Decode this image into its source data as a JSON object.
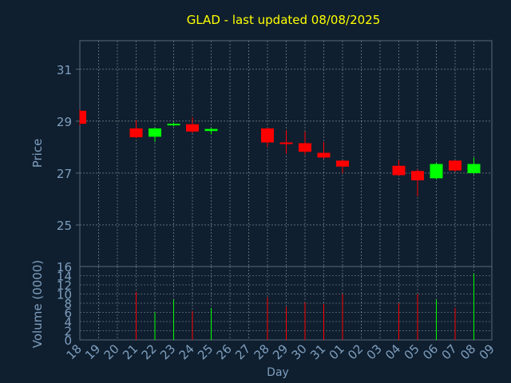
{
  "chart_data": [
    {
      "type": "candlestick",
      "title": "GLAD - last updated 08/08/2025",
      "ylabel": "Price",
      "ylim": [
        23.4,
        32.1
      ],
      "yticks": [
        25,
        27,
        29,
        31
      ],
      "grid": true,
      "categories": [
        "18",
        "19",
        "20",
        "21",
        "22",
        "23",
        "24",
        "25",
        "26",
        "27",
        "28",
        "29",
        "30",
        "31",
        "01",
        "02",
        "03",
        "04",
        "05",
        "06",
        "07",
        "08",
        "09"
      ],
      "candles": [
        {
          "day": "18",
          "open": 29.4,
          "close": 28.9,
          "high": 29.45,
          "low": 28.85
        },
        {
          "day": "21",
          "open": 28.72,
          "close": 28.38,
          "high": 29.05,
          "low": 28.35
        },
        {
          "day": "22",
          "open": 28.4,
          "close": 28.72,
          "high": 28.75,
          "low": 28.2
        },
        {
          "day": "23",
          "open": 28.85,
          "close": 28.9,
          "high": 28.95,
          "low": 28.8
        },
        {
          "day": "24",
          "open": 28.88,
          "close": 28.6,
          "high": 29.15,
          "low": 28.55
        },
        {
          "day": "25",
          "open": 28.62,
          "close": 28.7,
          "high": 28.75,
          "low": 28.5
        },
        {
          "day": "28",
          "open": 28.72,
          "close": 28.18,
          "high": 28.75,
          "low": 28.0
        },
        {
          "day": "29",
          "open": 28.18,
          "close": 28.15,
          "high": 28.65,
          "low": 27.75
        },
        {
          "day": "30",
          "open": 28.15,
          "close": 27.82,
          "high": 28.6,
          "low": 27.7
        },
        {
          "day": "31",
          "open": 27.78,
          "close": 27.6,
          "high": 28.2,
          "low": 27.55
        },
        {
          "day": "01",
          "open": 27.48,
          "close": 27.25,
          "high": 27.5,
          "low": 27.0
        },
        {
          "day": "04",
          "open": 27.28,
          "close": 26.92,
          "high": 27.5,
          "low": 26.9
        },
        {
          "day": "05",
          "open": 27.08,
          "close": 26.72,
          "high": 27.15,
          "low": 26.1
        },
        {
          "day": "06",
          "open": 26.8,
          "close": 27.35,
          "high": 27.4,
          "low": 26.75
        },
        {
          "day": "07",
          "open": 27.48,
          "close": 27.1,
          "high": 27.5,
          "low": 27.05
        },
        {
          "day": "08",
          "open": 27.0,
          "close": 27.35,
          "high": 27.6,
          "low": 26.95
        }
      ]
    },
    {
      "type": "bar",
      "ylabel": "Volume (0000)",
      "xlabel": "Day",
      "ylim": [
        0,
        16
      ],
      "yticks": [
        0,
        2,
        4,
        6,
        8,
        10,
        12,
        14,
        16
      ],
      "grid": true,
      "bars": [
        {
          "day": "21",
          "value": 10.5,
          "direction": "down"
        },
        {
          "day": "22",
          "value": 6.0,
          "direction": "up"
        },
        {
          "day": "23",
          "value": 8.8,
          "direction": "up"
        },
        {
          "day": "24",
          "value": 6.3,
          "direction": "down"
        },
        {
          "day": "25",
          "value": 7.0,
          "direction": "up"
        },
        {
          "day": "28",
          "value": 9.3,
          "direction": "down"
        },
        {
          "day": "29",
          "value": 7.2,
          "direction": "down"
        },
        {
          "day": "30",
          "value": 8.2,
          "direction": "down"
        },
        {
          "day": "31",
          "value": 7.8,
          "direction": "down"
        },
        {
          "day": "01",
          "value": 10.0,
          "direction": "down"
        },
        {
          "day": "04",
          "value": 8.0,
          "direction": "down"
        },
        {
          "day": "05",
          "value": 10.0,
          "direction": "down"
        },
        {
          "day": "06",
          "value": 8.8,
          "direction": "up"
        },
        {
          "day": "07",
          "value": 7.0,
          "direction": "down"
        },
        {
          "day": "08",
          "value": 14.5,
          "direction": "up"
        }
      ]
    }
  ],
  "colors": {
    "background": "#0f1f2f",
    "title": "#ffff00",
    "axis_text": "#7f9fbf",
    "frame": "#5a6a7a",
    "up": "#00ff00",
    "down": "#ff0000"
  }
}
